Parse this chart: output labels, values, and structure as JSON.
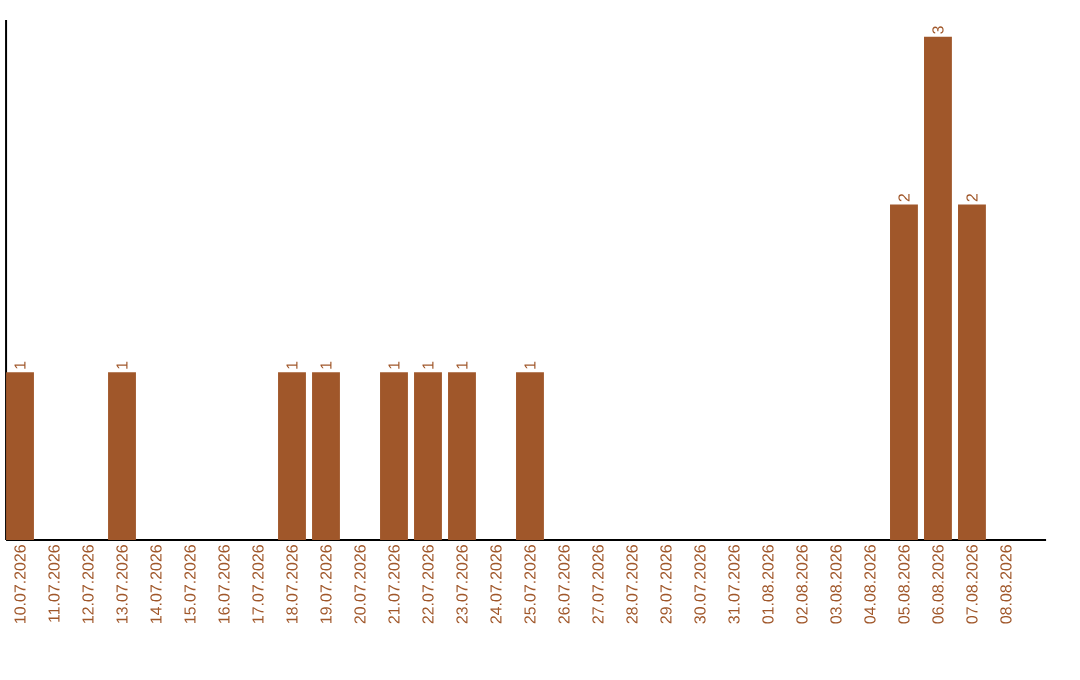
{
  "chart_data": {
    "type": "bar",
    "categories": [
      "10.07.2026",
      "11.07.2026",
      "12.07.2026",
      "13.07.2026",
      "14.07.2026",
      "15.07.2026",
      "16.07.2026",
      "17.07.2026",
      "18.07.2026",
      "19.07.2026",
      "20.07.2026",
      "21.07.2026",
      "22.07.2026",
      "23.07.2026",
      "24.07.2026",
      "25.07.2026",
      "26.07.2026",
      "27.07.2026",
      "28.07.2026",
      "29.07.2026",
      "30.07.2026",
      "31.07.2026",
      "01.08.2026",
      "02.08.2026",
      "03.08.2026",
      "04.08.2026",
      "05.08.2026",
      "06.08.2026",
      "07.08.2026",
      "08.08.2026"
    ],
    "values": [
      1,
      0,
      0,
      1,
      0,
      0,
      0,
      0,
      1,
      1,
      0,
      1,
      1,
      1,
      0,
      1,
      0,
      0,
      0,
      0,
      0,
      0,
      0,
      0,
      0,
      0,
      2,
      3,
      2,
      0
    ],
    "value_labels": [
      "1",
      null,
      null,
      "1",
      null,
      null,
      null,
      null,
      "1",
      "1",
      null,
      "1",
      "1",
      "1",
      null,
      "1",
      null,
      null,
      null,
      null,
      null,
      null,
      null,
      null,
      null,
      null,
      "2",
      "3",
      "2",
      null
    ],
    "color": "#a0572a",
    "ylim": [
      0,
      3.1
    ],
    "tick_labels": "x"
  }
}
